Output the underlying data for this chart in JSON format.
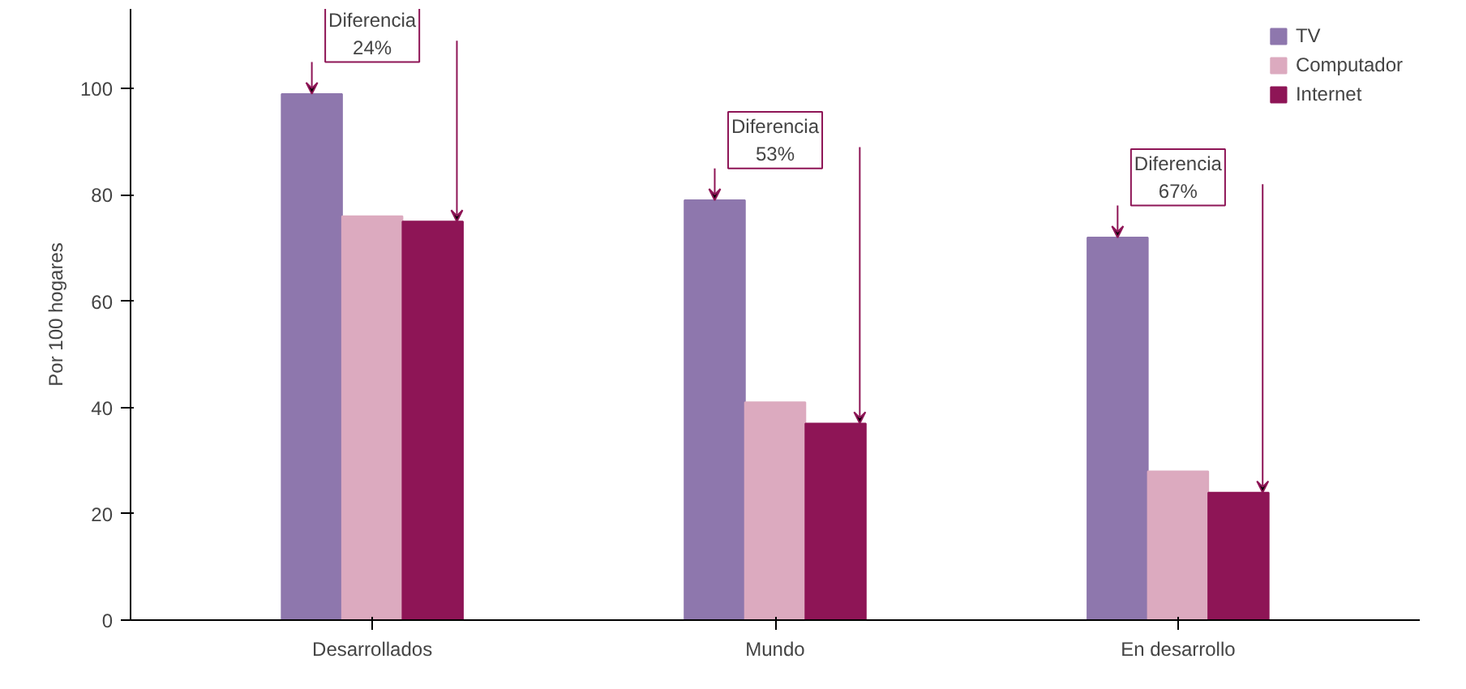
{
  "chart_data": {
    "type": "bar",
    "ylabel": "Por 100 hogares",
    "categories": [
      "Desarrollados",
      "Mundo",
      "En desarrollo"
    ],
    "series": [
      {
        "name": "TV",
        "color": "#8e77ad",
        "values": [
          99,
          79,
          72
        ]
      },
      {
        "name": "Computador",
        "color": "#dcaabf",
        "values": [
          76,
          41,
          28
        ]
      },
      {
        "name": "Internet",
        "color": "#8e1556",
        "values": [
          75,
          37,
          24
        ]
      }
    ],
    "ylim": [
      0,
      115
    ],
    "yticks": [
      0,
      20,
      40,
      60,
      80,
      100
    ],
    "grid": false,
    "legend": "top right",
    "annotations": [
      "Diferencia\n24%",
      "Diferencia\n53%",
      "Diferencia\n67%"
    ]
  }
}
